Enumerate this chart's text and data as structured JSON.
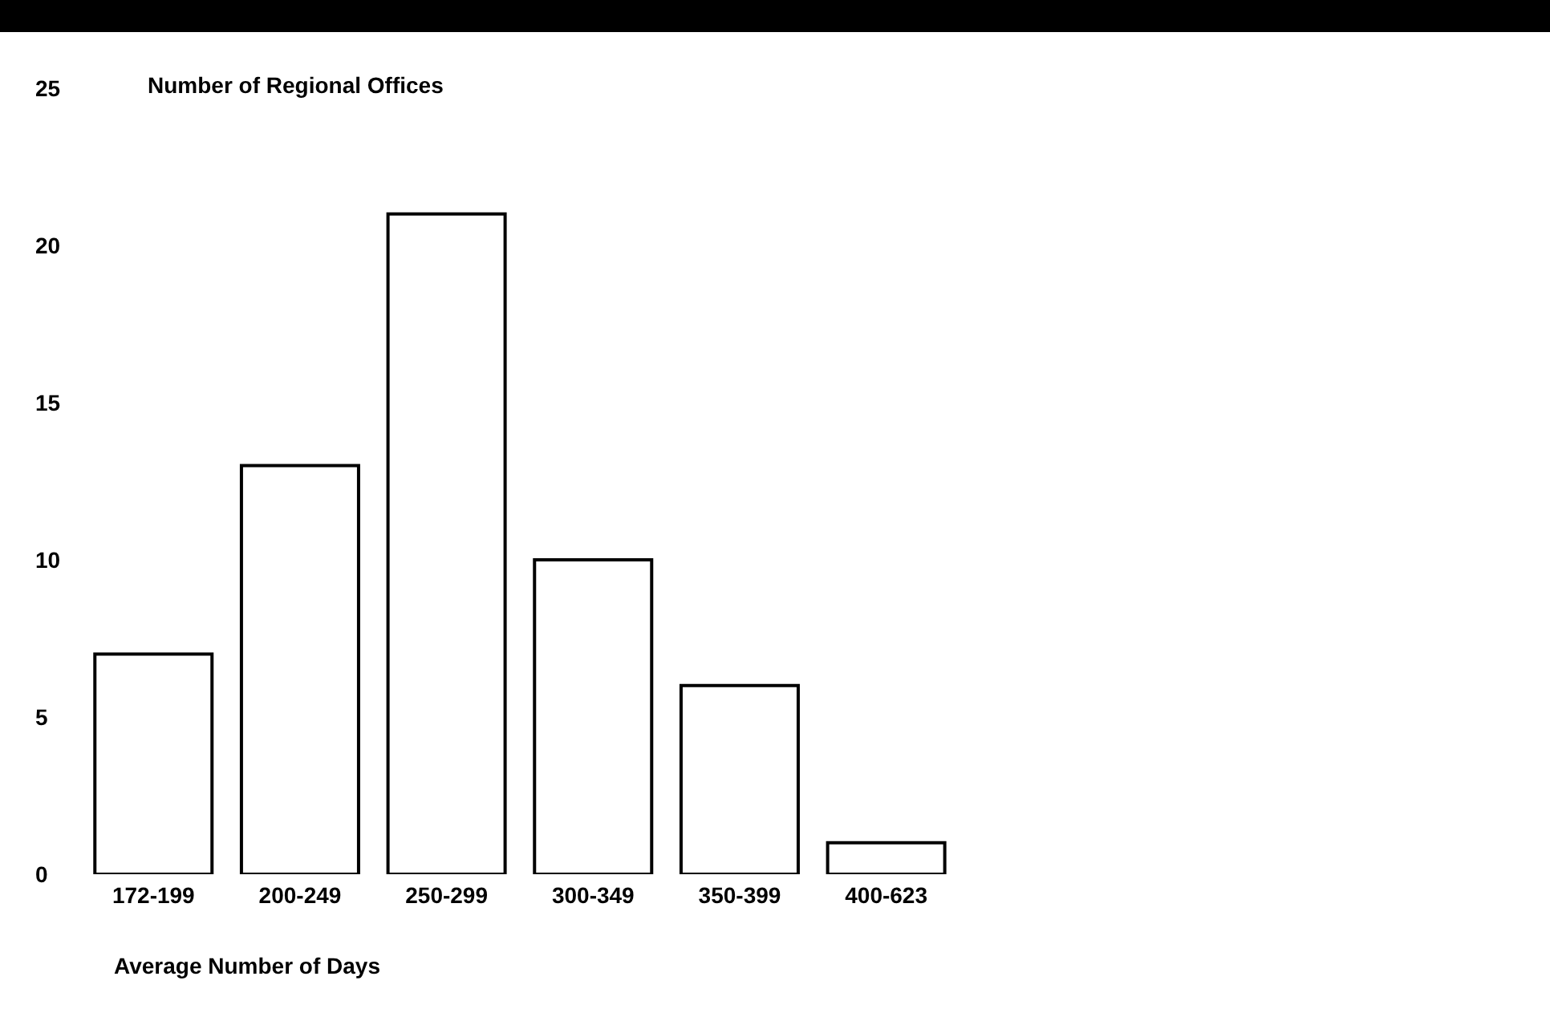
{
  "chart_data": {
    "type": "bar",
    "ylabel": "Number of Regional Offices",
    "xlabel": "Average Number of Days",
    "categories": [
      "172-199",
      "200-249",
      "250-299",
      "300-349",
      "350-399",
      "400-623"
    ],
    "values": [
      7,
      13,
      21,
      10,
      6,
      1
    ],
    "color": "#ffffff",
    "ylim": [
      0,
      25
    ],
    "yticks": [
      0,
      5,
      10,
      15,
      20,
      25
    ],
    "grid": false,
    "legend": false
  }
}
